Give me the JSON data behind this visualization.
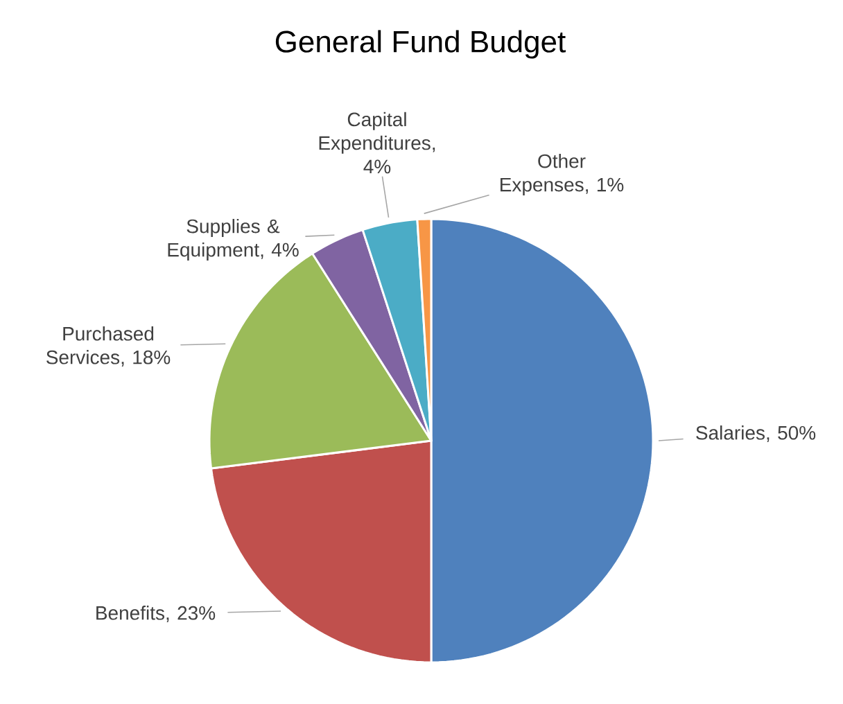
{
  "chart_data": {
    "type": "pie",
    "title": "General Fund Budget",
    "categories": [
      "Salaries",
      "Benefits",
      "Purchased Services",
      "Supplies & Equipment",
      "Capital Expenditures",
      "Other Expenses"
    ],
    "values": [
      50,
      23,
      18,
      4,
      4,
      1
    ],
    "colors": [
      "#4f81bd",
      "#c0504d",
      "#9bbb59",
      "#8064a2",
      "#4bacc6",
      "#f79646"
    ],
    "data_labels": true,
    "value_labels": [
      ", 50%",
      ", 23%",
      ", 18%",
      ", 4%",
      ", 4%",
      ", 1%"
    ]
  }
}
